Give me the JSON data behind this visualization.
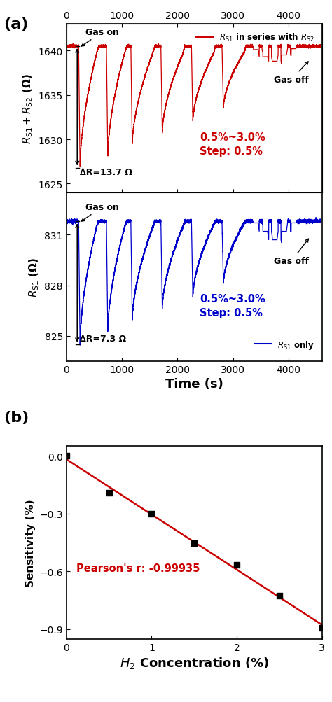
{
  "panel_a_label": "(a)",
  "panel_b_label": "(b)",
  "top_plot": {
    "ylabel": "$R_{\\mathrm{S1}}+R_{\\mathrm{S2}}$ (Ω)",
    "ylim": [
      1624,
      1643
    ],
    "yticks": [
      1625,
      1630,
      1635,
      1640
    ],
    "color": "#cc0000",
    "baseline": 1640.5,
    "dip_depths": [
      13.7,
      12.8,
      11.5,
      10.2,
      9.0,
      7.5
    ],
    "recovery_to": [
      1640.3,
      1639.8,
      1639.5,
      1639.6,
      1639.8,
      1640.1
    ],
    "gas_off_steps": [
      1640.0,
      1639.2,
      1638.5,
      1638.8
    ],
    "annotation_range": "∆R=13.7 Ω",
    "annotation_step": "0.5%~3.0%\nStep: 0.5%",
    "annotation_step_color": "#cc0000",
    "legend_label": "$R_{\\mathrm{S1}}$ in series with $R_{\\mathrm{S2}}$",
    "legend_color": "#cc0000"
  },
  "bottom_plot": {
    "ylabel": "$R_{\\mathrm{S1}}$ (Ω)",
    "ylim": [
      823.5,
      833.5
    ],
    "yticks": [
      825,
      828,
      831
    ],
    "color": "#0000cc",
    "baseline": 831.8,
    "dip_depths": [
      7.3,
      6.8,
      6.1,
      5.4,
      4.8,
      4.0
    ],
    "annotation_range": "∆R=7.3 Ω",
    "annotation_step": "0.5%~3.0%\nStep: 0.5%",
    "annotation_step_color": "#0000cc",
    "legend_label": "$R_{\\mathrm{S1}}$ only",
    "legend_color": "#0000cc"
  },
  "shared_xlabel": "Time (s)",
  "xlim": [
    0,
    4600
  ],
  "xticks": [
    0,
    1000,
    2000,
    3000,
    4000
  ],
  "scatter_x": [
    0,
    0.5,
    1.0,
    1.5,
    2.0,
    2.5,
    3.0
  ],
  "scatter_y": [
    0.0,
    -0.194,
    -0.302,
    -0.455,
    -0.567,
    -0.726,
    -0.893
  ],
  "scatter_color": "#000000",
  "fit_color": "#cc0000",
  "b_ylabel": "Sensitivity (%)",
  "b_xlabel": "$H_2$ Concentration (%)",
  "b_xlim": [
    0,
    3
  ],
  "b_ylim": [
    -0.95,
    0.05
  ],
  "b_xticks": [
    0,
    1,
    2,
    3
  ],
  "b_yticks": [
    0.0,
    -0.3,
    -0.6,
    -0.9
  ],
  "pearson_text": "Pearson's r: -0.99935",
  "pearson_color": "#cc0000"
}
